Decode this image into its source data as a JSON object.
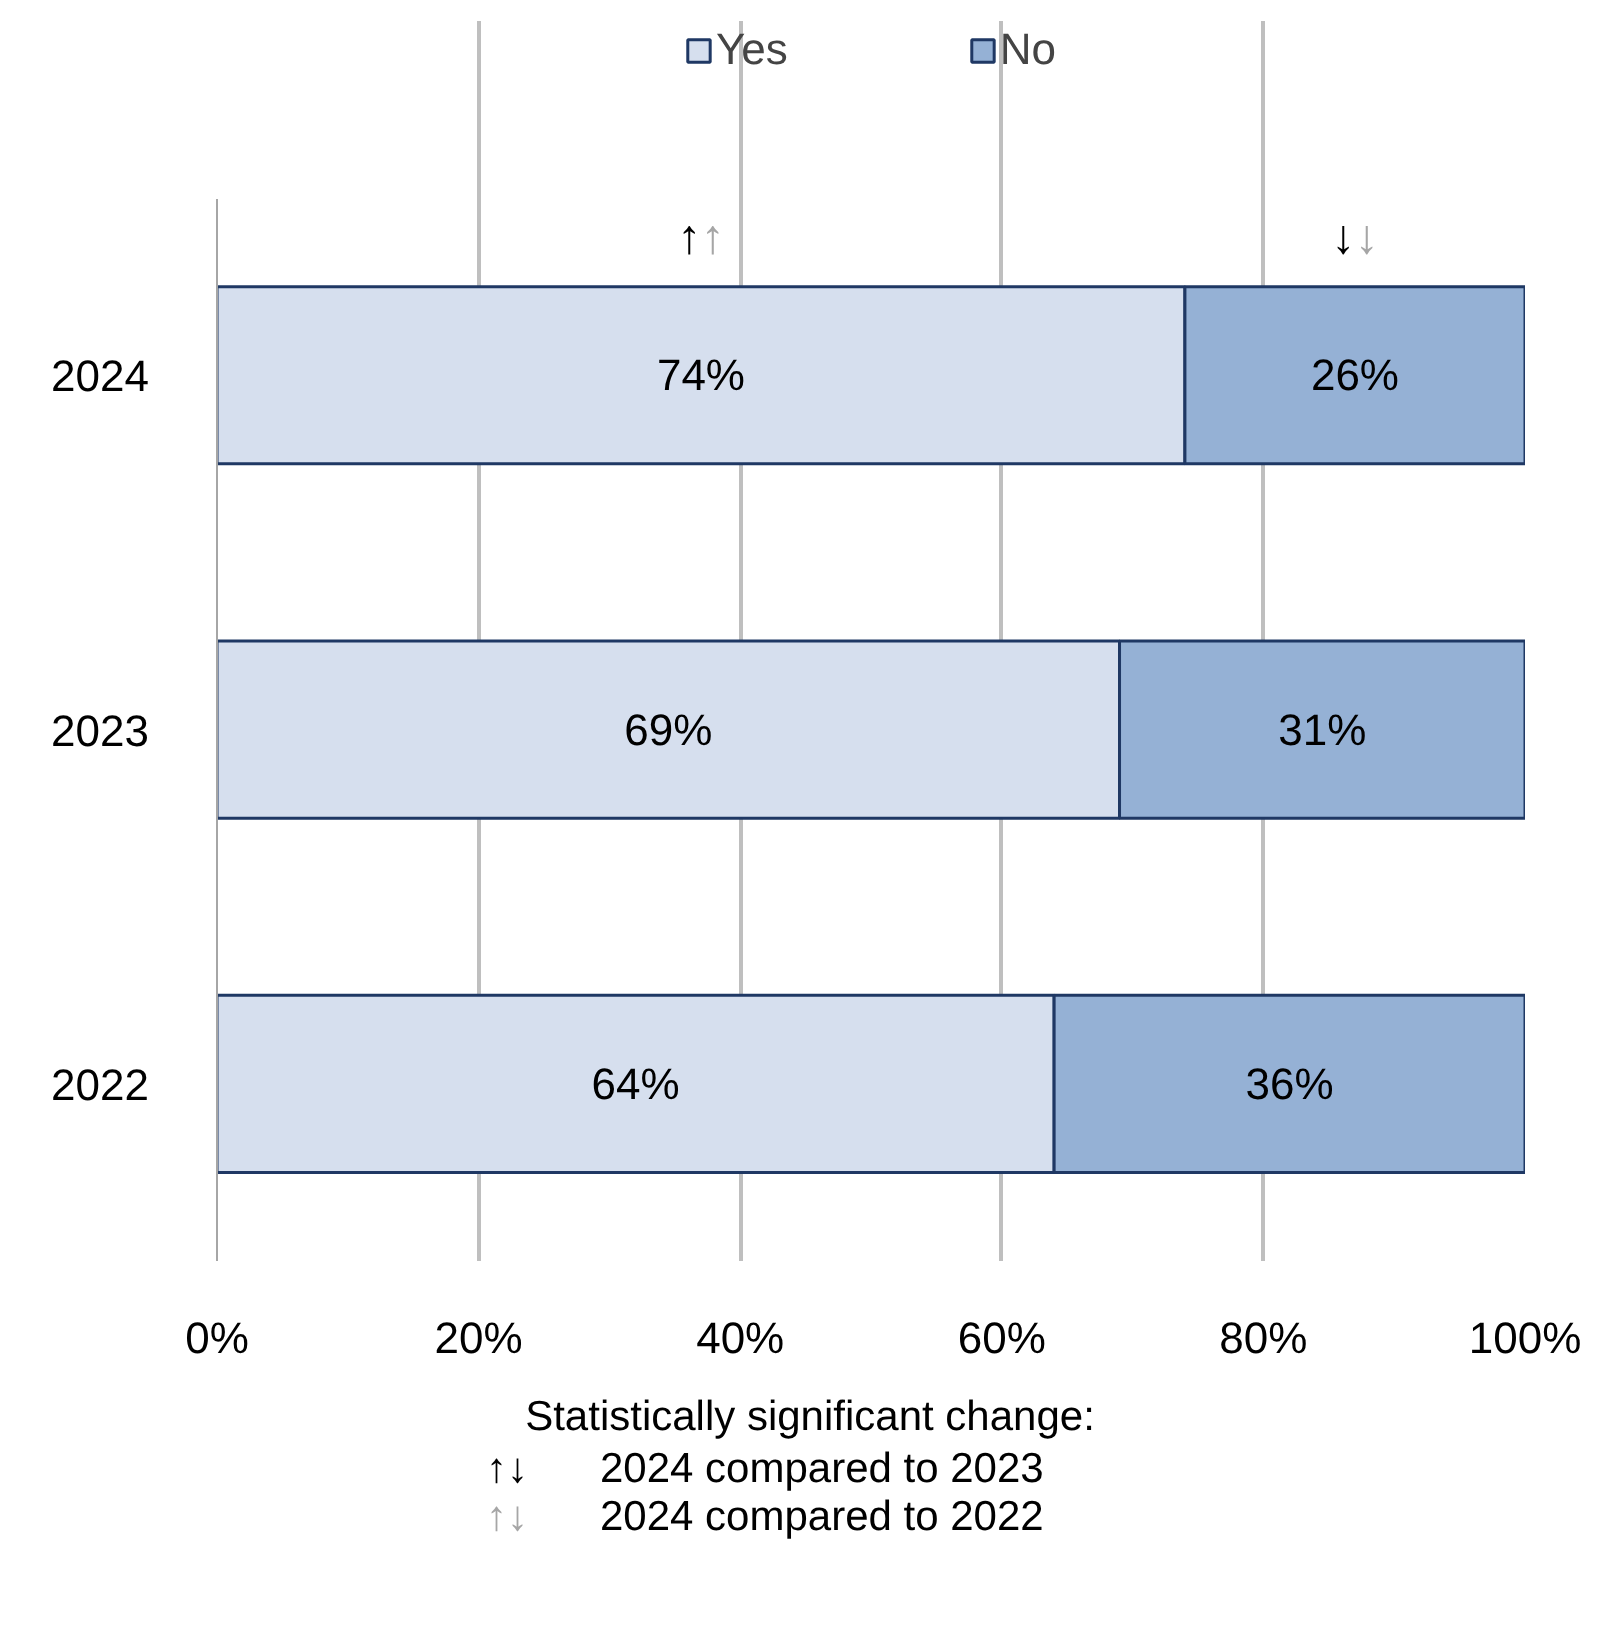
{
  "chart_data": {
    "type": "bar",
    "orientation": "horizontal",
    "stacked": true,
    "categories": [
      "2024",
      "2023",
      "2022"
    ],
    "series": [
      {
        "name": "Yes",
        "color": "#d6dfee",
        "values": [
          74,
          69,
          64
        ],
        "value_labels": [
          "74%",
          "69%",
          "64%"
        ]
      },
      {
        "name": "No",
        "color": "#95b1d5",
        "values": [
          26,
          31,
          36
        ],
        "value_labels": [
          "26%",
          "31%",
          "36%"
        ]
      }
    ],
    "xlim": [
      0,
      100
    ],
    "xticks": [
      {
        "value": 0,
        "label": "0%"
      },
      {
        "value": 20,
        "label": "20%"
      },
      {
        "value": 40,
        "label": "40%"
      },
      {
        "value": 60,
        "label": "60%"
      },
      {
        "value": 80,
        "label": "80%"
      },
      {
        "value": 100,
        "label": "100%"
      }
    ],
    "grid": "x",
    "legend": "top",
    "annotations": [
      "↑↑",
      "↓↓",
      "Statistically significant change:",
      "↑↓ 2024 compared to 2023",
      "↑↓ 2024 compared to 2022"
    ]
  }
}
